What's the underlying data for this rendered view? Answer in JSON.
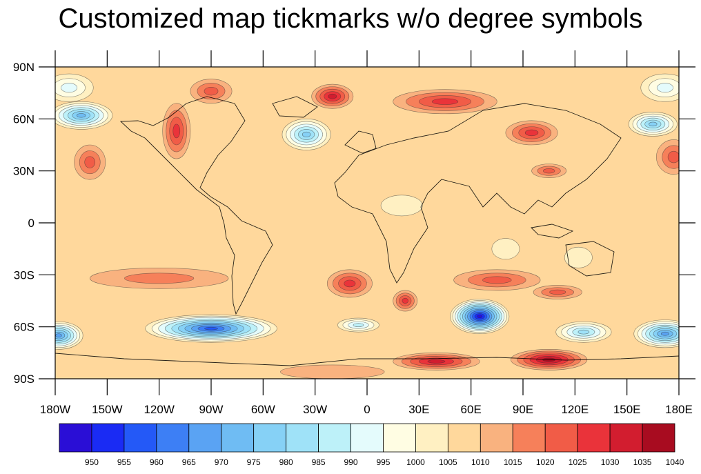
{
  "title": "Customized map tickmarks w/o degree symbols",
  "map": {
    "lat_labels": [
      "90N",
      "60N",
      "30N",
      "0",
      "30S",
      "60S",
      "90S"
    ],
    "lat_values": [
      90,
      60,
      30,
      0,
      -30,
      -60,
      -90
    ],
    "lon_labels": [
      "180W",
      "150W",
      "120W",
      "90W",
      "60W",
      "30W",
      "0",
      "30E",
      "60E",
      "90E",
      "120E",
      "150E",
      "180E"
    ],
    "lon_values": [
      -180,
      -150,
      -120,
      -90,
      -60,
      -30,
      0,
      30,
      60,
      90,
      120,
      150,
      180
    ],
    "background_level": 1010,
    "contour_interval": 5,
    "pressure_features": [
      {
        "lon": -165,
        "lat": 62,
        "value": 975,
        "rx": 18,
        "ry": 8
      },
      {
        "lon": 165,
        "lat": 57,
        "value": 980,
        "rx": 14,
        "ry": 7
      },
      {
        "lon": -172,
        "lat": 78,
        "value": 995,
        "rx": 14,
        "ry": 8
      },
      {
        "lon": 172,
        "lat": 78,
        "value": 995,
        "rx": 14,
        "ry": 8
      },
      {
        "lon": -35,
        "lat": 51,
        "value": 980,
        "rx": 14,
        "ry": 9
      },
      {
        "lon": -90,
        "lat": 76,
        "value": 1025,
        "rx": 12,
        "ry": 7
      },
      {
        "lon": -110,
        "lat": 53,
        "value": 1030,
        "rx": 8,
        "ry": 16
      },
      {
        "lon": -20,
        "lat": 73,
        "value": 1035,
        "rx": 12,
        "ry": 7
      },
      {
        "lon": 45,
        "lat": 70,
        "value": 1030,
        "rx": 30,
        "ry": 7
      },
      {
        "lon": 95,
        "lat": 52,
        "value": 1030,
        "rx": 15,
        "ry": 7
      },
      {
        "lon": 105,
        "lat": 30,
        "value": 1025,
        "rx": 10,
        "ry": 4
      },
      {
        "lon": -160,
        "lat": 35,
        "value": 1025,
        "rx": 9,
        "ry": 10
      },
      {
        "lon": 177,
        "lat": 38,
        "value": 1025,
        "rx": 10,
        "ry": 10
      },
      {
        "lon": -120,
        "lat": -32,
        "value": 1020,
        "rx": 40,
        "ry": 6
      },
      {
        "lon": -10,
        "lat": -35,
        "value": 1030,
        "rx": 13,
        "ry": 8
      },
      {
        "lon": 75,
        "lat": -33,
        "value": 1025,
        "rx": 25,
        "ry": 6
      },
      {
        "lon": 22,
        "lat": -45,
        "value": 1030,
        "rx": 7,
        "ry": 6
      },
      {
        "lon": 110,
        "lat": -40,
        "value": 1025,
        "rx": 14,
        "ry": 4
      },
      {
        "lon": 20,
        "lat": 10,
        "value": 1005,
        "rx": 12,
        "ry": 6
      },
      {
        "lon": 80,
        "lat": -15,
        "value": 1005,
        "rx": 8,
        "ry": 6
      },
      {
        "lon": 122,
        "lat": -20,
        "value": 1005,
        "rx": 8,
        "ry": 6
      },
      {
        "lon": 65,
        "lat": -54,
        "value": 950,
        "rx": 17,
        "ry": 10
      },
      {
        "lon": -90,
        "lat": -61,
        "value": 960,
        "rx": 38,
        "ry": 8
      },
      {
        "lon": -178,
        "lat": -65,
        "value": 970,
        "rx": 14,
        "ry": 8
      },
      {
        "lon": 172,
        "lat": -64,
        "value": 970,
        "rx": 18,
        "ry": 8
      },
      {
        "lon": 125,
        "lat": -63,
        "value": 985,
        "rx": 16,
        "ry": 6
      },
      {
        "lon": -5,
        "lat": -59,
        "value": 990,
        "rx": 12,
        "ry": 4
      },
      {
        "lon": 40,
        "lat": -80,
        "value": 1035,
        "rx": 25,
        "ry": 5
      },
      {
        "lon": 105,
        "lat": -79,
        "value": 1040,
        "rx": 22,
        "ry": 6
      },
      {
        "lon": -20,
        "lat": -86,
        "value": 1015,
        "rx": 30,
        "ry": 4
      }
    ]
  },
  "colorbar": {
    "levels": [
      "950",
      "955",
      "960",
      "965",
      "970",
      "975",
      "980",
      "985",
      "990",
      "995",
      "1000",
      "1005",
      "1010",
      "1015",
      "1020",
      "1025",
      "1030",
      "1035",
      "1040"
    ],
    "colors": [
      "#2a0ed6",
      "#1a2bf4",
      "#2459f7",
      "#3d7ff5",
      "#5aa3f3",
      "#6fbcf3",
      "#86d1f6",
      "#9fe2f8",
      "#bdf1f9",
      "#e4fbfc",
      "#fffde3",
      "#fff0c2",
      "#ffd89c",
      "#f9b27f",
      "#f6805a",
      "#f15c47",
      "#ea333a",
      "#d21d2f",
      "#a80c20"
    ]
  }
}
